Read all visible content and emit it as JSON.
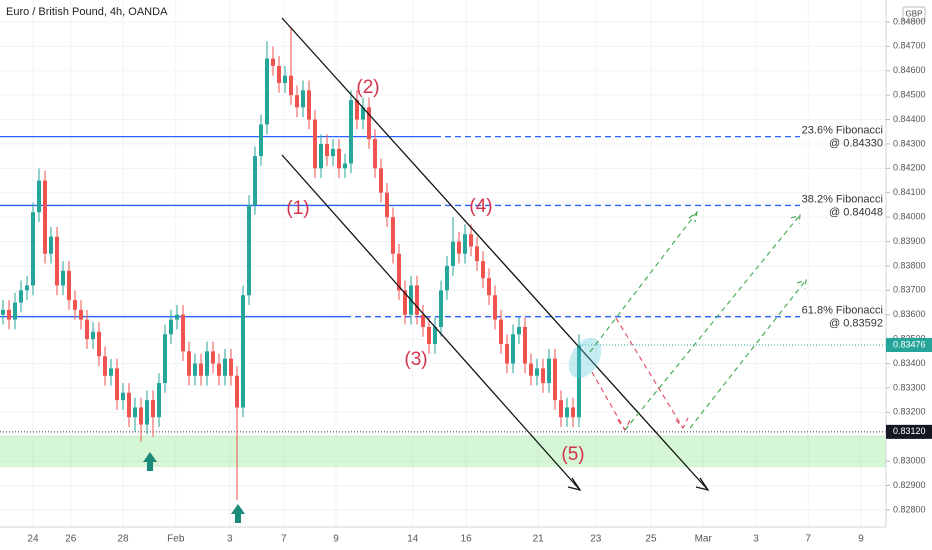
{
  "chart_data": {
    "type": "candlestick",
    "title": "Euro / British Pound, 4h, OANDA",
    "currency": "GBP",
    "up_color": "#26a69a",
    "down_color": "#ef5350",
    "grid": true,
    "xlim": [
      -0.5,
      147.17
    ],
    "xticks": [
      {
        "value": 5,
        "label": "24"
      },
      {
        "value": 11.3,
        "label": "26"
      },
      {
        "value": 20,
        "label": "28"
      },
      {
        "value": 28.8,
        "label": "Feb"
      },
      {
        "value": 37.8,
        "label": "3"
      },
      {
        "value": 46.8,
        "label": "7"
      },
      {
        "value": 55.5,
        "label": "9"
      },
      {
        "value": 68.3,
        "label": "14"
      },
      {
        "value": 77.2,
        "label": "16"
      },
      {
        "value": 89.2,
        "label": "21"
      },
      {
        "value": 98.8,
        "label": "23"
      },
      {
        "value": 108,
        "label": "25"
      },
      {
        "value": 116.7,
        "label": "Mar"
      },
      {
        "value": 125.5,
        "label": "3"
      },
      {
        "value": 134.2,
        "label": "7"
      },
      {
        "value": 143,
        "label": "9"
      }
    ],
    "ylim": [
      0.8273,
      0.8489
    ],
    "yticks": [
      {
        "value": 0.828,
        "label": "0.82800"
      },
      {
        "value": 0.829,
        "label": "0.82900"
      },
      {
        "value": 0.83,
        "label": "0.83000"
      },
      {
        "value": 0.831,
        "label": "0.83100"
      },
      {
        "value": 0.832,
        "label": "0.83200"
      },
      {
        "value": 0.833,
        "label": "0.83300"
      },
      {
        "value": 0.834,
        "label": "0.83400"
      },
      {
        "value": 0.835,
        "label": "0.83500"
      },
      {
        "value": 0.836,
        "label": "0.83600"
      },
      {
        "value": 0.837,
        "label": "0.83700"
      },
      {
        "value": 0.838,
        "label": "0.83800"
      },
      {
        "value": 0.839,
        "label": "0.83900"
      },
      {
        "value": 0.84,
        "label": "0.84000"
      },
      {
        "value": 0.841,
        "label": "0.84100"
      },
      {
        "value": 0.842,
        "label": "0.84200"
      },
      {
        "value": 0.843,
        "label": "0.84300"
      },
      {
        "value": 0.844,
        "label": "0.84400"
      },
      {
        "value": 0.845,
        "label": "0.84500"
      },
      {
        "value": 0.846,
        "label": "0.84600"
      },
      {
        "value": 0.847,
        "label": "0.84700"
      },
      {
        "value": 0.848,
        "label": "0.84800"
      }
    ],
    "open": [
      0.836,
      0.8362,
      0.8358,
      0.8365,
      0.837,
      0.8372,
      0.8402,
      0.8415,
      0.8385,
      0.8392,
      0.8372,
      0.8378,
      0.8366,
      0.8362,
      0.8358,
      0.835,
      0.8353,
      0.8343,
      0.8335,
      0.8338,
      0.8325,
      0.8328,
      0.8318,
      0.8322,
      0.8315,
      0.8325,
      0.8318,
      0.8332,
      0.8352,
      0.8358,
      0.836,
      0.8345,
      0.8335,
      0.834,
      0.8335,
      0.8345,
      0.834,
      0.8335,
      0.8342,
      0.8335,
      0.8322,
      0.8368,
      0.8405,
      0.8425,
      0.8438,
      0.8465,
      0.8462,
      0.8455,
      0.8458,
      0.845,
      0.8445,
      0.8452,
      0.844,
      0.842,
      0.843,
      0.8425,
      0.8428,
      0.842,
      0.8422,
      0.8448,
      0.844,
      0.8445,
      0.8432,
      0.842,
      0.841,
      0.84,
      0.8385,
      0.837,
      0.836,
      0.8372,
      0.836,
      0.8355,
      0.8348,
      0.8355,
      0.837,
      0.838,
      0.839,
      0.8385,
      0.8393,
      0.8388,
      0.8382,
      0.8375,
      0.8368,
      0.8358,
      0.8348,
      0.834,
      0.8352,
      0.8355,
      0.834,
      0.8335,
      0.8338,
      0.8332,
      0.8342,
      0.8325,
      0.8318,
      0.8322,
      0.8318
    ],
    "high": [
      0.8366,
      0.8366,
      0.8369,
      0.8374,
      0.8376,
      0.8406,
      0.842,
      0.8419,
      0.8396,
      0.8396,
      0.8382,
      0.8382,
      0.837,
      0.8366,
      0.8362,
      0.8357,
      0.8357,
      0.8347,
      0.8342,
      0.8342,
      0.8332,
      0.8332,
      0.8326,
      0.8326,
      0.8329,
      0.8329,
      0.8336,
      0.8356,
      0.8362,
      0.8364,
      0.8364,
      0.8349,
      0.8344,
      0.8344,
      0.8349,
      0.8349,
      0.8344,
      0.8346,
      0.8346,
      0.8339,
      0.8372,
      0.8409,
      0.8429,
      0.8442,
      0.8472,
      0.847,
      0.8466,
      0.8462,
      0.8478,
      0.8454,
      0.8456,
      0.8456,
      0.8444,
      0.8434,
      0.8434,
      0.8432,
      0.8432,
      0.8426,
      0.8452,
      0.8452,
      0.8449,
      0.8449,
      0.8436,
      0.8424,
      0.8414,
      0.8404,
      0.8389,
      0.8374,
      0.8376,
      0.8376,
      0.8364,
      0.8359,
      0.8359,
      0.8374,
      0.8384,
      0.84,
      0.8394,
      0.8397,
      0.8397,
      0.8392,
      0.8386,
      0.8379,
      0.8372,
      0.8362,
      0.8352,
      0.8356,
      0.8359,
      0.8359,
      0.8344,
      0.8342,
      0.8342,
      0.8346,
      0.8346,
      0.8329,
      0.8326,
      0.8326,
      0.8352
    ],
    "low": [
      0.8356,
      0.8354,
      0.8354,
      0.8361,
      0.8366,
      0.8368,
      0.8398,
      0.8381,
      0.8381,
      0.8368,
      0.8368,
      0.8362,
      0.8358,
      0.8354,
      0.8346,
      0.8346,
      0.8339,
      0.8331,
      0.8331,
      0.8321,
      0.8321,
      0.8314,
      0.8312,
      0.8308,
      0.8311,
      0.831,
      0.8314,
      0.8328,
      0.8348,
      0.8354,
      0.8341,
      0.8331,
      0.8331,
      0.8331,
      0.8331,
      0.8336,
      0.8331,
      0.8331,
      0.8331,
      0.8284,
      0.8318,
      0.8364,
      0.8401,
      0.8421,
      0.8434,
      0.8458,
      0.8451,
      0.8451,
      0.8446,
      0.8441,
      0.8441,
      0.8436,
      0.8416,
      0.8416,
      0.8421,
      0.8421,
      0.8416,
      0.8416,
      0.8418,
      0.8436,
      0.8436,
      0.8428,
      0.8416,
      0.8406,
      0.8396,
      0.8381,
      0.8366,
      0.8356,
      0.8356,
      0.8356,
      0.8351,
      0.8344,
      0.8344,
      0.8351,
      0.8366,
      0.8376,
      0.8381,
      0.8381,
      0.8384,
      0.8378,
      0.8371,
      0.8364,
      0.8354,
      0.8344,
      0.8336,
      0.8336,
      0.8348,
      0.8336,
      0.8331,
      0.8331,
      0.8328,
      0.8328,
      0.8321,
      0.8314,
      0.8314,
      0.8314,
      0.8314
    ],
    "close": [
      0.8362,
      0.8358,
      0.8365,
      0.837,
      0.8372,
      0.8402,
      0.8415,
      0.8385,
      0.8392,
      0.8372,
      0.8378,
      0.8366,
      0.8362,
      0.8358,
      0.835,
      0.8353,
      0.8343,
      0.8335,
      0.8338,
      0.8325,
      0.8328,
      0.8318,
      0.8322,
      0.8315,
      0.8325,
      0.8318,
      0.8332,
      0.8352,
      0.8358,
      0.836,
      0.8345,
      0.8335,
      0.834,
      0.8335,
      0.8345,
      0.834,
      0.8335,
      0.8342,
      0.8335,
      0.8322,
      0.8368,
      0.8405,
      0.8425,
      0.8438,
      0.8465,
      0.8462,
      0.8455,
      0.8458,
      0.845,
      0.8445,
      0.8452,
      0.844,
      0.842,
      0.843,
      0.8425,
      0.8428,
      0.842,
      0.8422,
      0.8448,
      0.844,
      0.8445,
      0.8432,
      0.842,
      0.841,
      0.84,
      0.8385,
      0.837,
      0.836,
      0.8372,
      0.836,
      0.8355,
      0.8348,
      0.8355,
      0.837,
      0.838,
      0.839,
      0.8385,
      0.8393,
      0.8388,
      0.8382,
      0.8375,
      0.8368,
      0.8358,
      0.8348,
      0.834,
      0.8352,
      0.8355,
      0.834,
      0.8335,
      0.8338,
      0.8332,
      0.8342,
      0.8325,
      0.8318,
      0.8322,
      0.8318,
      0.83476
    ],
    "fib_levels": [
      {
        "name": "23.6% Fibonacci",
        "label": "@ 0.84330",
        "value": 0.8433,
        "color": "#2962ff"
      },
      {
        "name": "38.2% Fibonacci",
        "label": "@ 0.84048",
        "value": 0.84048,
        "color": "#2962ff"
      },
      {
        "name": "61.8% Fibonacci",
        "label": "@ 0.83592",
        "value": 0.83592,
        "color": "#2962ff"
      }
    ],
    "support": {
      "value": 0.8312,
      "label": "0.83120"
    },
    "support_zone": [
      0.82975,
      0.83105
    ],
    "waves": [
      "(1)",
      "(2)",
      "(3)",
      "(4)",
      "(5)"
    ]
  }
}
